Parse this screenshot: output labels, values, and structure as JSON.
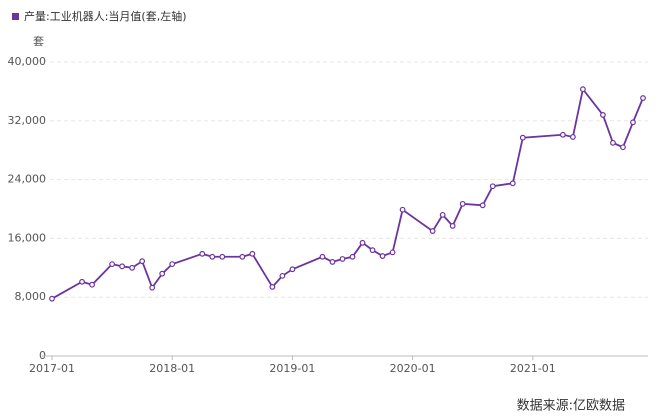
{
  "chart_data": {
    "type": "line",
    "legend": "产量:工业机器人:当月值(套,左轴)",
    "y_unit": "套",
    "source": "数据来源:亿欧数据",
    "series": [
      {
        "name": "产量:工业机器人:当月值(套,左轴)",
        "color": "#6b35a0",
        "x": [
          "2017-01",
          "2017-04",
          "2017-05",
          "2017-07",
          "2017-08",
          "2017-09",
          "2017-10",
          "2017-11",
          "2017-12",
          "2018-01",
          "2018-04",
          "2018-05",
          "2018-06",
          "2018-08",
          "2018-09",
          "2018-11",
          "2018-12",
          "2019-01",
          "2019-04",
          "2019-05",
          "2019-06",
          "2019-07",
          "2019-08",
          "2019-09",
          "2019-10",
          "2019-11",
          "2019-12",
          "2020-03",
          "2020-04",
          "2020-05",
          "2020-06",
          "2020-08",
          "2020-09",
          "2020-11",
          "2020-12",
          "2021-04",
          "2021-05",
          "2021-06",
          "2021-08",
          "2021-09",
          "2021-10",
          "2021-11",
          "2021-12"
        ],
        "values": [
          7800,
          10100,
          9700,
          12500,
          12200,
          12000,
          12900,
          9300,
          11200,
          12500,
          13900,
          13500,
          13500,
          13500,
          13900,
          9400,
          10900,
          11800,
          13500,
          12800,
          13200,
          13500,
          15400,
          14400,
          13600,
          14100,
          19900,
          17000,
          19200,
          17700,
          20700,
          20500,
          23100,
          23500,
          29700,
          30100,
          29800,
          36300,
          32800,
          29000,
          28400,
          31800,
          35100
        ]
      }
    ],
    "xlim": [
      "2017-01",
      "2021-12"
    ],
    "xticks": [
      "2017-01",
      "2018-01",
      "2019-01",
      "2020-01",
      "2021-01"
    ],
    "ylim": [
      0,
      40000
    ],
    "yticks": [
      0,
      {
        "value": 8000,
        "label": "8,000"
      },
      {
        "value": 16000,
        "label": "16,000"
      },
      {
        "value": 24000,
        "label": "24,000"
      },
      {
        "value": 32000,
        "label": "32,000"
      },
      {
        "value": 40000,
        "label": "40,000"
      }
    ],
    "grid": true
  }
}
